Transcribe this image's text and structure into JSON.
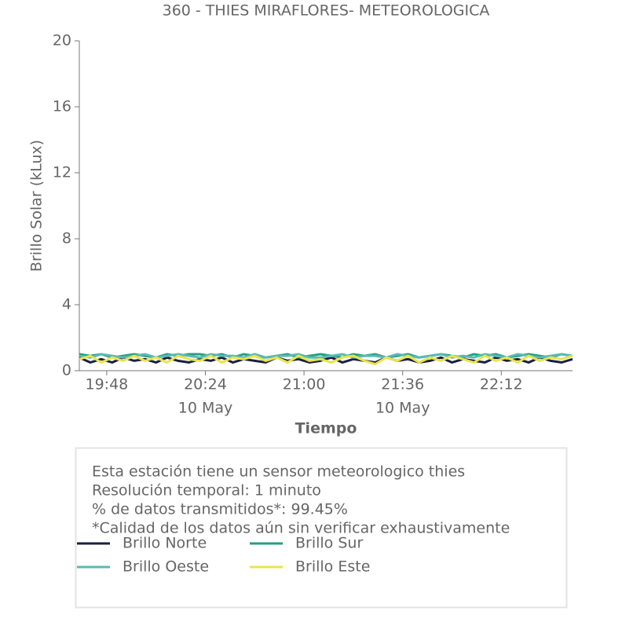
{
  "chart_data": {
    "type": "line",
    "title": "360 - THIES MIRAFLORES- METEOROLOGICA",
    "x_label": "Tiempo",
    "y_label": "Brillo Solar (kLux)",
    "x": [
      "19:38",
      "19:42",
      "19:46",
      "19:50",
      "19:54",
      "19:58",
      "20:02",
      "20:06",
      "20:10",
      "20:14",
      "20:18",
      "20:22",
      "20:26",
      "20:30",
      "20:34",
      "20:38",
      "20:42",
      "20:46",
      "20:50",
      "20:54",
      "20:58",
      "21:02",
      "21:06",
      "21:10",
      "21:14",
      "21:18",
      "21:22",
      "21:26",
      "21:30",
      "21:34",
      "21:38",
      "21:42",
      "21:46",
      "21:50",
      "21:54",
      "21:58",
      "22:02",
      "22:06",
      "22:10",
      "22:14",
      "22:18",
      "22:22",
      "22:26",
      "22:30",
      "22:34",
      "22:38"
    ],
    "xlim": [
      "19:38",
      "22:38"
    ],
    "xticks": [
      {
        "value": "19:48",
        "label": "19:48"
      },
      {
        "value": "20:24",
        "label": "20:24",
        "sublabel": "10 May"
      },
      {
        "value": "21:00",
        "label": "21:00"
      },
      {
        "value": "21:36",
        "label": "21:36",
        "sublabel": "10 May"
      },
      {
        "value": "22:12",
        "label": "22:12"
      }
    ],
    "ylim": [
      0,
      20
    ],
    "yticks": [
      0,
      4,
      8,
      12,
      16,
      20
    ],
    "grid": false,
    "series": [
      {
        "name": "Brillo Norte",
        "color": "#1b1f3f",
        "values": [
          0.8,
          0.5,
          0.7,
          0.5,
          0.8,
          0.6,
          0.7,
          0.5,
          0.8,
          0.6,
          0.5,
          0.7,
          0.6,
          0.8,
          0.5,
          0.7,
          0.6,
          0.5,
          0.8,
          0.6,
          0.7,
          0.5,
          0.6,
          0.8,
          0.5,
          0.7,
          0.6,
          0.5,
          0.8,
          0.6,
          0.7,
          0.5,
          0.6,
          0.8,
          0.5,
          0.7,
          0.6,
          0.5,
          0.8,
          0.6,
          0.7,
          0.5,
          0.8,
          0.6,
          0.5,
          0.7
        ]
      },
      {
        "name": "Brillo Sur",
        "color": "#22a181",
        "values": [
          1.0,
          0.9,
          1.0,
          0.8,
          0.9,
          1.0,
          0.9,
          0.8,
          1.0,
          0.9,
          1.0,
          1.0,
          0.9,
          1.0,
          0.8,
          1.0,
          0.9,
          0.8,
          0.9,
          1.0,
          0.8,
          0.9,
          1.0,
          0.9,
          0.8,
          1.0,
          0.9,
          1.0,
          0.8,
          0.9,
          1.0,
          0.8,
          0.9,
          1.0,
          0.9,
          0.8,
          1.0,
          0.9,
          1.0,
          0.8,
          0.9,
          1.0,
          0.9,
          0.8,
          1.0,
          0.9
        ]
      },
      {
        "name": "Brillo Oeste",
        "color": "#5ab9b6",
        "values": [
          0.9,
          0.8,
          1.0,
          0.9,
          0.8,
          0.9,
          1.0,
          0.8,
          0.9,
          1.0,
          0.9,
          0.8,
          1.0,
          0.9,
          0.9,
          0.8,
          1.0,
          0.8,
          0.9,
          0.9,
          1.0,
          0.8,
          0.8,
          0.9,
          1.0,
          0.8,
          0.9,
          0.9,
          0.8,
          1.0,
          0.9,
          0.8,
          0.9,
          1.0,
          0.8,
          0.9,
          0.8,
          1.0,
          0.9,
          0.8,
          1.0,
          0.9,
          0.8,
          0.9,
          1.0,
          0.9
        ]
      },
      {
        "name": "Brillo Este",
        "color": "#e9e44e",
        "values": [
          0.7,
          0.9,
          0.5,
          0.8,
          0.6,
          0.9,
          0.6,
          0.8,
          0.5,
          0.9,
          0.7,
          0.6,
          0.9,
          0.5,
          0.8,
          0.7,
          0.9,
          0.6,
          0.8,
          0.5,
          0.9,
          0.6,
          0.7,
          0.5,
          0.8,
          0.9,
          0.6,
          0.4,
          0.8,
          0.6,
          0.9,
          0.5,
          0.8,
          0.6,
          0.9,
          0.7,
          0.5,
          0.9,
          0.6,
          0.8,
          0.5,
          0.9,
          0.6,
          0.8,
          0.7,
          0.9
        ]
      }
    ]
  },
  "info_box": {
    "lines": [
      "Esta estación tiene un sensor meteorologico thies",
      "Resolución temporal: 1 minuto",
      "% de datos transmitidos*: 99.45%",
      "*Calidad de los datos aún sin verificar exhaustivamente"
    ]
  }
}
